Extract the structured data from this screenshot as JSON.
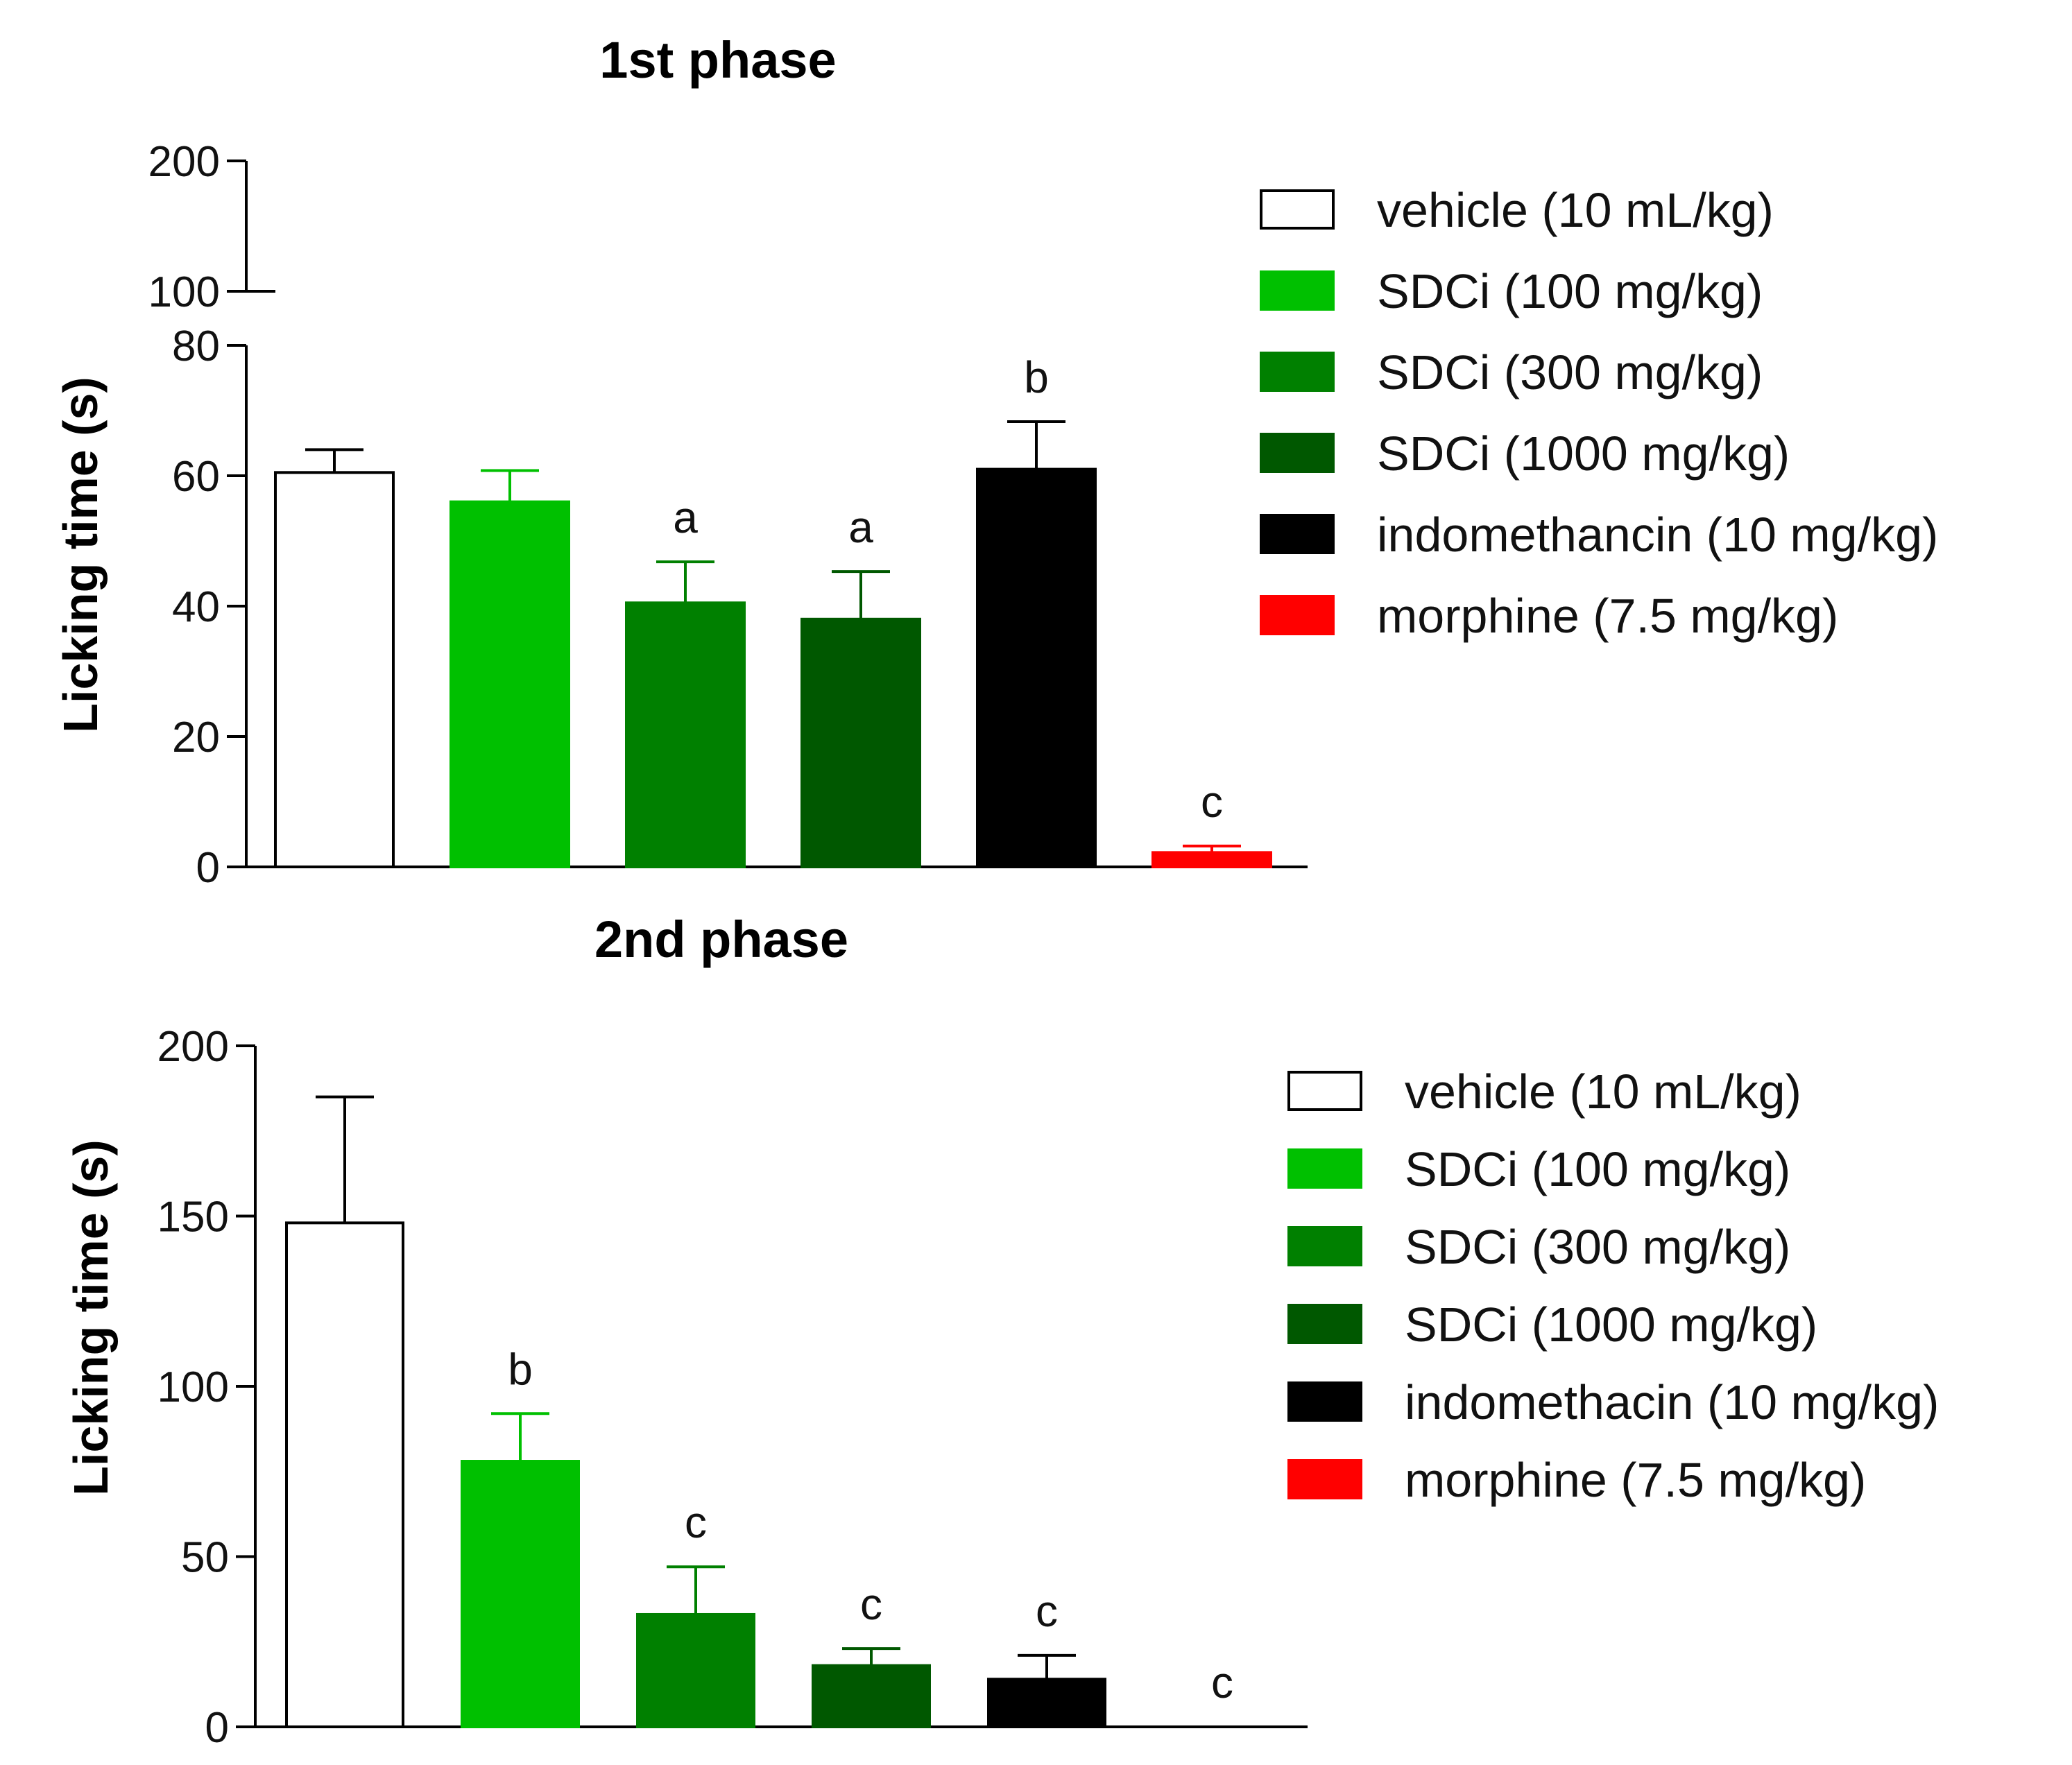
{
  "chart_data": [
    {
      "type": "bar",
      "title": "1st phase",
      "xlabel": "",
      "ylabel": "Licking time (s)",
      "axis_break": true,
      "ylim": [
        0,
        80
      ],
      "upper_segment_ticks": [
        100,
        200
      ],
      "yticks": [
        0,
        20,
        40,
        60,
        80
      ],
      "categories": [
        "vehicle (10 mL/kg)",
        "SDCi (100 mg/kg)",
        "SDCi (300 mg/kg)",
        "SDCi (1000 mg/kg)",
        "indomethancin (10 mg/kg)",
        "morphine (7.5 mg/kg)"
      ],
      "values": [
        60.5,
        56,
        40.5,
        38,
        61,
        2.2
      ],
      "errors": [
        3.5,
        4.8,
        6.3,
        7.3,
        7.3,
        1
      ],
      "significance": [
        "",
        "",
        "a",
        "a",
        "b",
        "c"
      ],
      "colors": [
        "#ffffff",
        "#00c000",
        "#008000",
        "#005800",
        "#000000",
        "#ff0000"
      ],
      "legend": {
        "position": "right",
        "entries": [
          "vehicle (10 mL/kg)",
          "SDCi (100 mg/kg)",
          "SDCi (300 mg/kg)",
          "SDCi (1000 mg/kg)",
          "indomethancin (10 mg/kg)",
          "morphine (7.5 mg/kg)"
        ]
      }
    },
    {
      "type": "bar",
      "title": "2nd phase",
      "xlabel": "",
      "ylabel": "Licking time (s)",
      "ylim": [
        0,
        200
      ],
      "yticks": [
        0,
        50,
        100,
        150,
        200
      ],
      "categories": [
        "vehicle (10 mL/kg)",
        "SDCi (100 mg/kg)",
        "SDCi (300 mg/kg)",
        "SDCi (1000 mg/kg)",
        "indomethacin (10 mg/kg)",
        "morphine (7.5 mg/kg)"
      ],
      "values": [
        148,
        78,
        33,
        18,
        14,
        0
      ],
      "errors": [
        37,
        14,
        14,
        5,
        7,
        0
      ],
      "significance": [
        "",
        "b",
        "c",
        "c",
        "c",
        "c"
      ],
      "colors": [
        "#ffffff",
        "#00c000",
        "#008000",
        "#005800",
        "#000000",
        "#ff0000"
      ],
      "legend": {
        "position": "right",
        "entries": [
          "vehicle (10 mL/kg)",
          "SDCi (100 mg/kg)",
          "SDCi (300 mg/kg)",
          "SDCi (1000 mg/kg)",
          "indomethacin (10 mg/kg)",
          "morphine (7.5 mg/kg)"
        ]
      }
    }
  ]
}
